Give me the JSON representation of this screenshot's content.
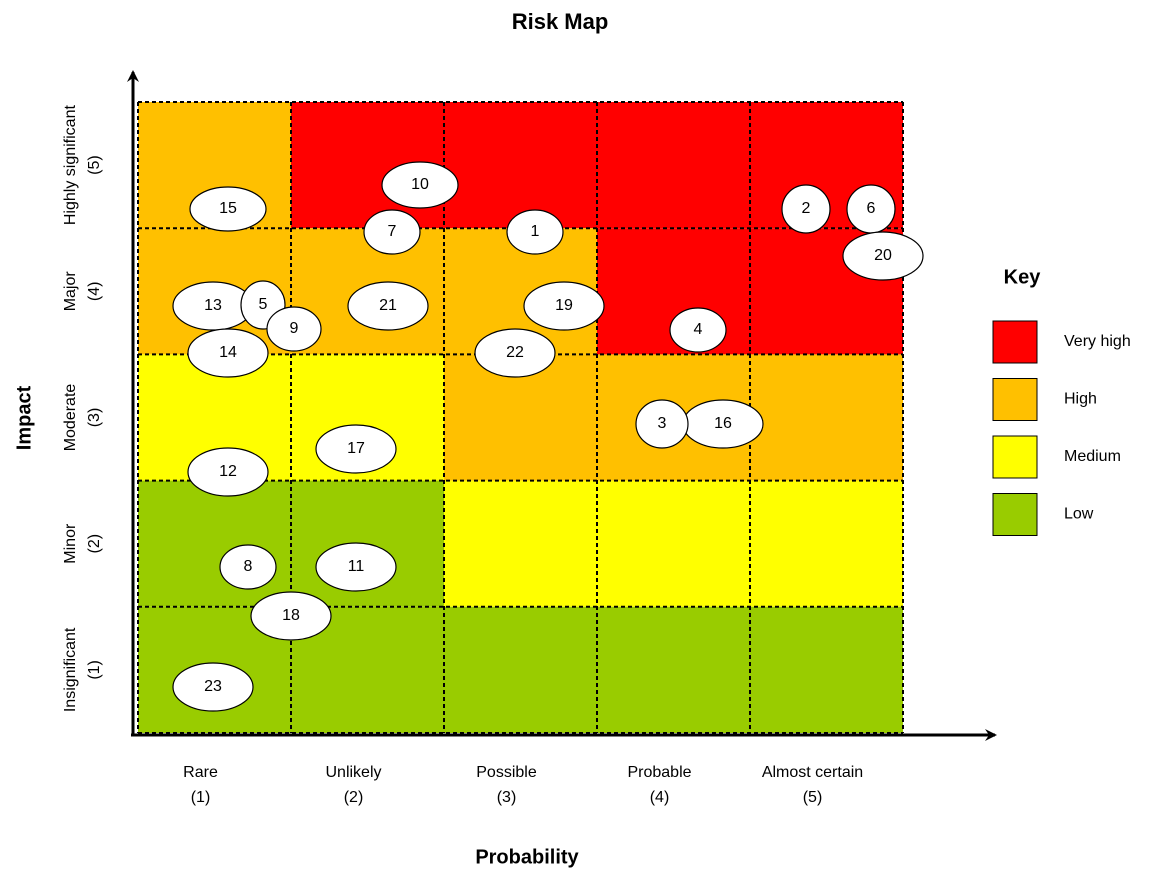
{
  "title": "Risk Map",
  "x_axis_label": "Probability",
  "y_axis_label": "Impact",
  "x_categories": [
    {
      "name": "Rare",
      "level": "(1)"
    },
    {
      "name": "Unlikely",
      "level": "(2)"
    },
    {
      "name": "Possible",
      "level": "(3)"
    },
    {
      "name": "Probable",
      "level": "(4)"
    },
    {
      "name": "Almost certain",
      "level": "(5)"
    }
  ],
  "y_categories": [
    {
      "name": "Insignificant",
      "level": "(1)"
    },
    {
      "name": "Minor",
      "level": "(2)"
    },
    {
      "name": "Moderate",
      "level": "(3)"
    },
    {
      "name": "Major",
      "level": "(4)"
    },
    {
      "name": "Highly significant",
      "level": "(5)"
    }
  ],
  "key": {
    "title": "Key",
    "items": [
      {
        "label": "Very high",
        "color": "#ff0000"
      },
      {
        "label": "High",
        "color": "#ffc000"
      },
      {
        "label": "Medium",
        "color": "#ffff00"
      },
      {
        "label": "Low",
        "color": "#99cc00"
      }
    ]
  },
  "risks": [
    "15",
    "10",
    "7",
    "1",
    "2",
    "6",
    "20",
    "13",
    "5",
    "9",
    "21",
    "19",
    "4",
    "14",
    "22",
    "16",
    "3",
    "17",
    "12",
    "8",
    "11",
    "18",
    "23"
  ]
}
